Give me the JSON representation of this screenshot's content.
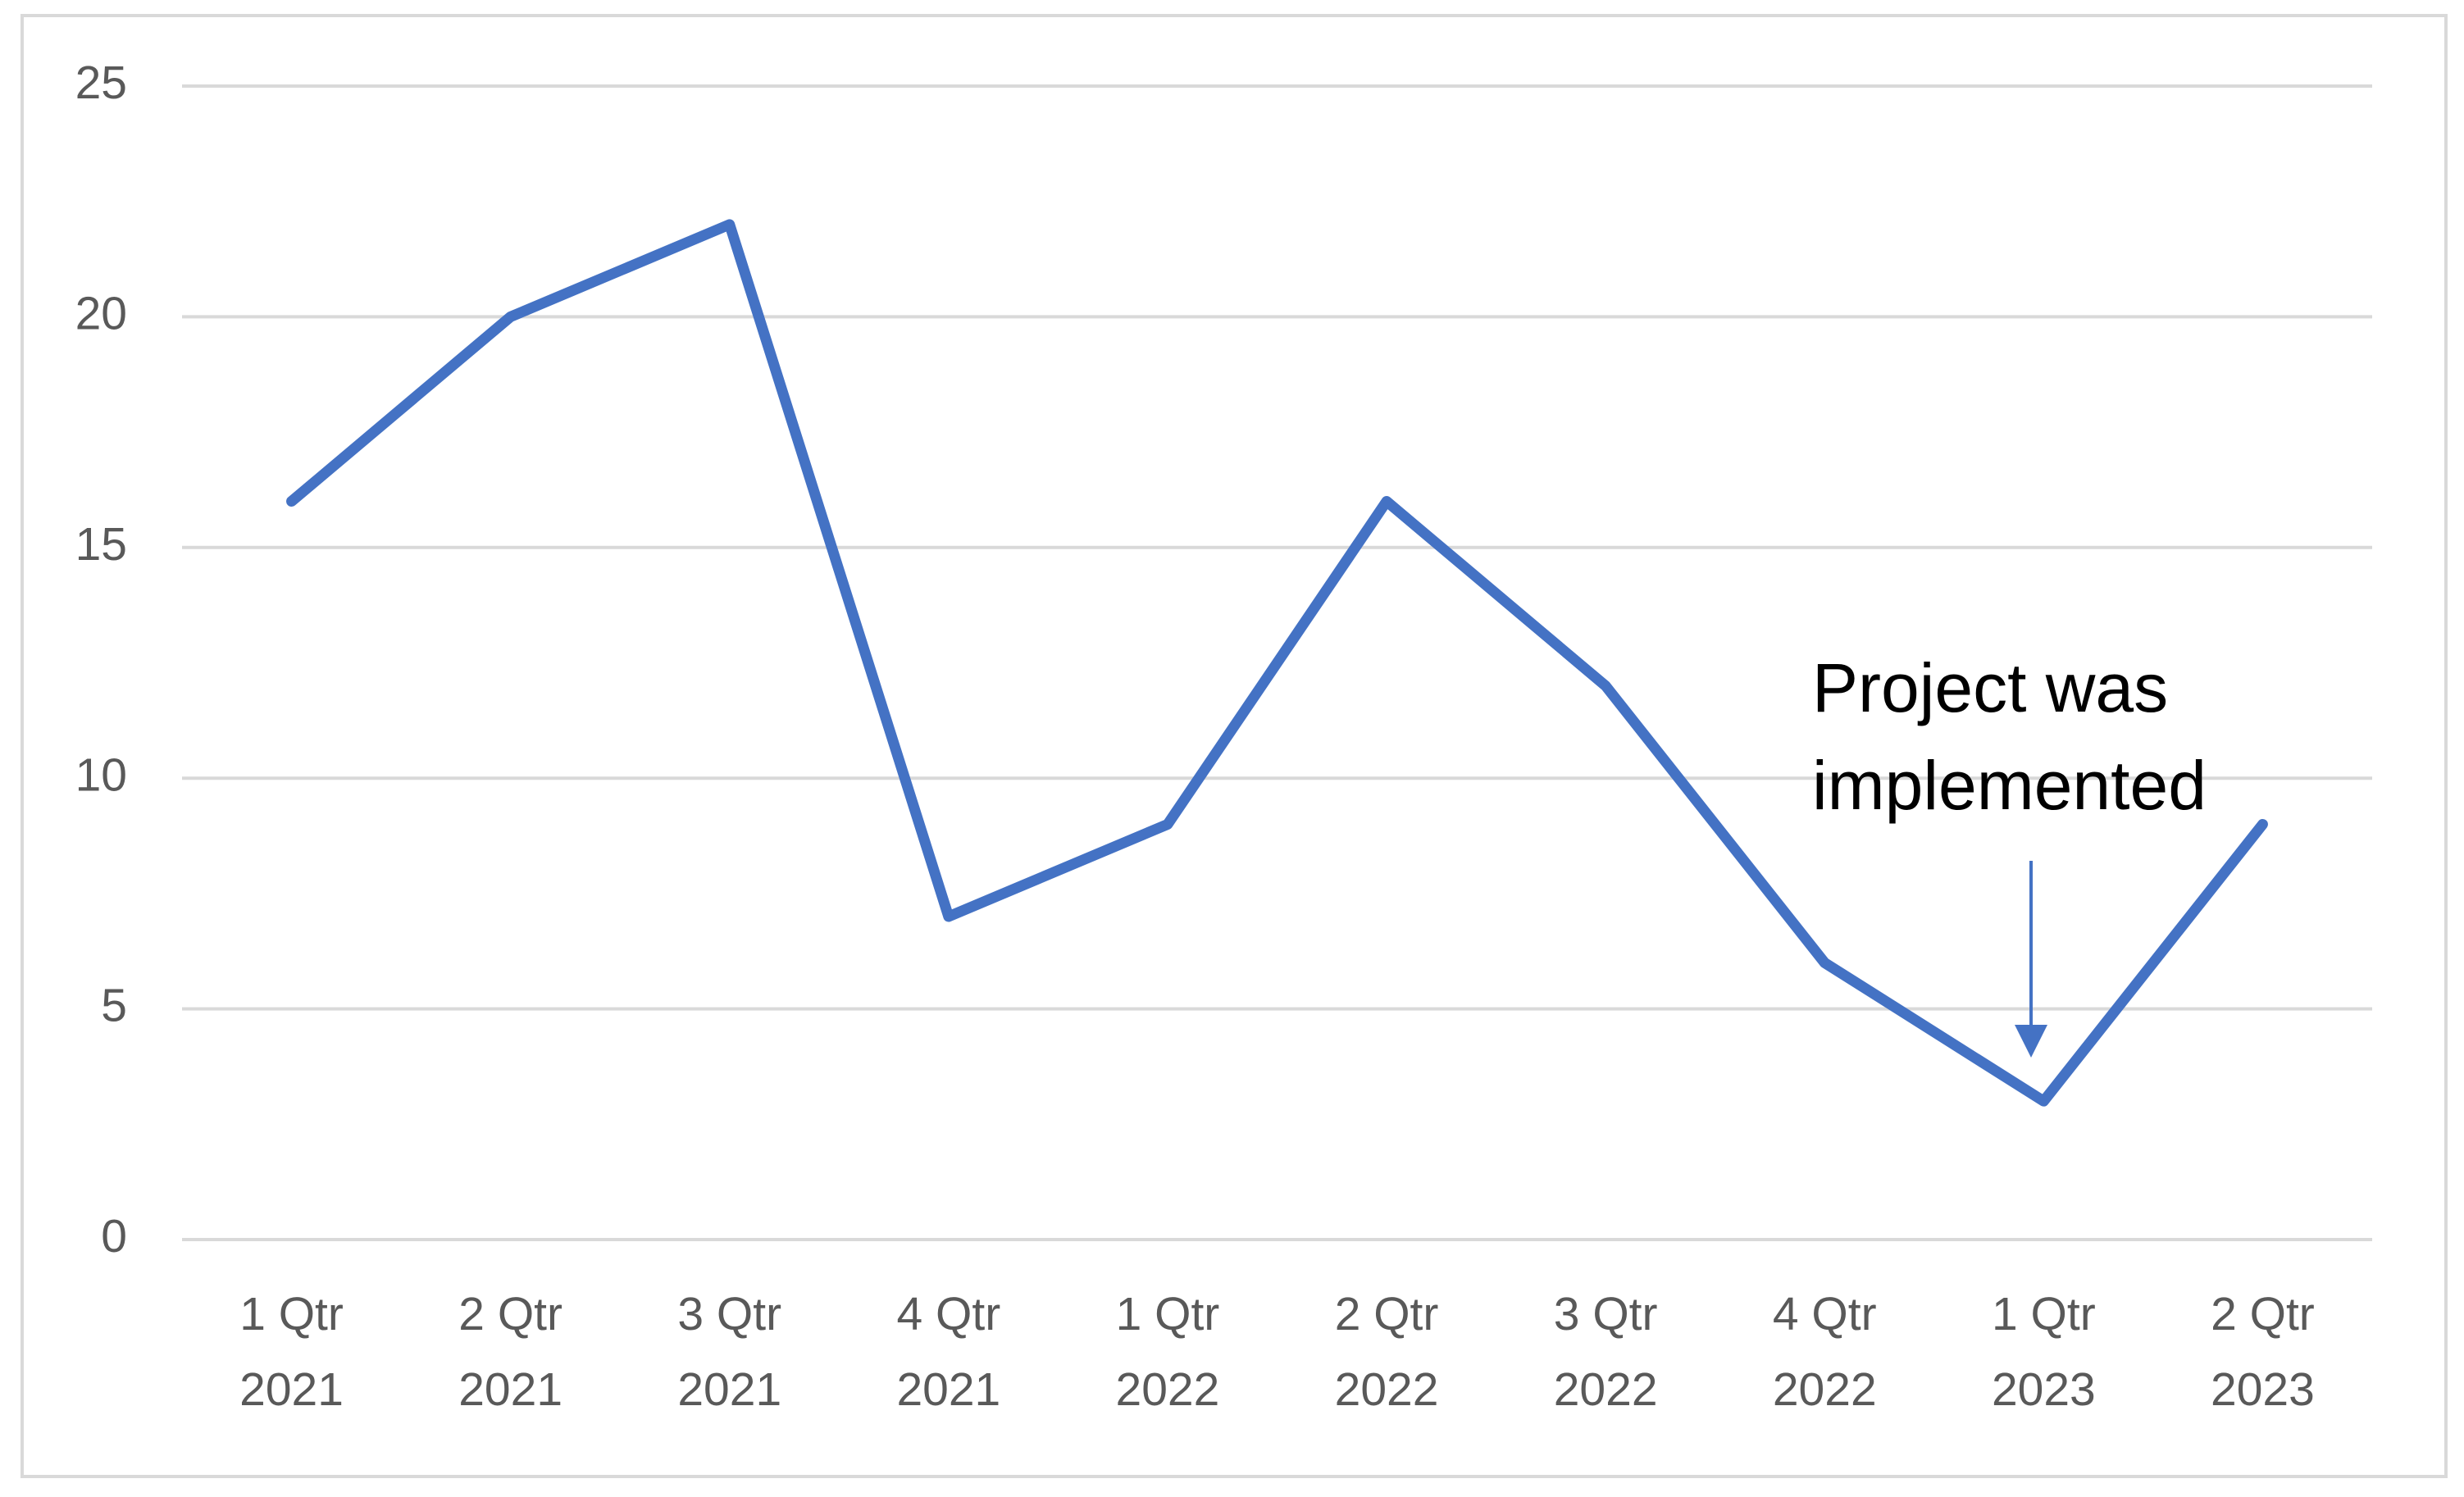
{
  "chart_data": {
    "type": "line",
    "categories": [
      "1 Qtr 2021",
      "2 Qtr 2021",
      "3 Qtr 2021",
      "4 Qtr 2021",
      "1 Qtr 2022",
      "2 Qtr 2022",
      "3 Qtr 2022",
      "4 Qtr 2022",
      "1 Qtr 2023",
      "2 Qtr 2023"
    ],
    "values": [
      16,
      20,
      22,
      7,
      9,
      16,
      12,
      6,
      3,
      9
    ],
    "color": "#4472c4",
    "ylim": [
      0,
      25
    ],
    "yticks": [
      0,
      5,
      10,
      15,
      20,
      25
    ],
    "grid": true,
    "annotation": "Project was implemented"
  }
}
